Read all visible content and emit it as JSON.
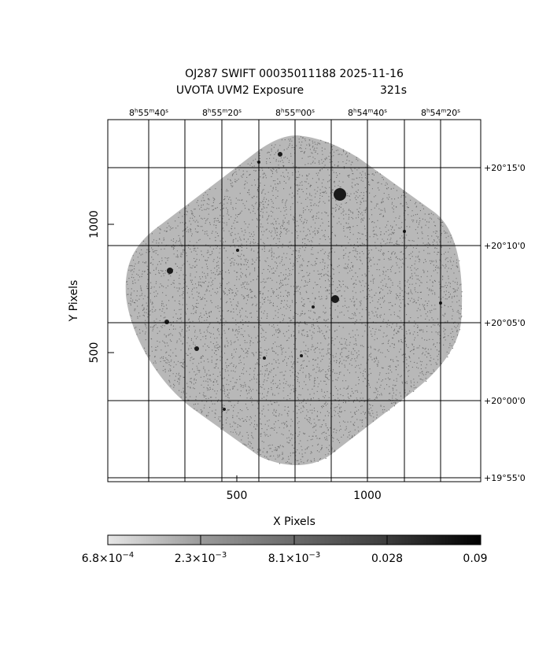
{
  "title": {
    "line1": "OJ287 SWIFT 00035011188 2025-11-16",
    "line2_left": "UVOTA UVM2 Exposure",
    "line2_right": "321s"
  },
  "axes": {
    "xlabel": "X Pixels",
    "ylabel": "Y Pixels",
    "x_ticks": [
      "500",
      "1000"
    ],
    "y_ticks": [
      "500",
      "1000"
    ],
    "ra_ticks": [
      {
        "h": "8",
        "m": "55",
        "s": "40"
      },
      {
        "h": "8",
        "m": "55",
        "s": "20"
      },
      {
        "h": "8",
        "m": "55",
        "s": "00"
      },
      {
        "h": "8",
        "m": "54",
        "s": "40"
      },
      {
        "h": "8",
        "m": "54",
        "s": "20"
      }
    ],
    "dec_ticks": [
      "+20°15'0",
      "+20°10'0",
      "+20°05'0",
      "+20°00'0",
      "+19°55'0"
    ]
  },
  "colorbar": {
    "labels": [
      {
        "mant": "6.8×10",
        "exp": "−4"
      },
      {
        "mant": "2.3×10",
        "exp": "−3"
      },
      {
        "mant": "8.1×10",
        "exp": "−3"
      },
      {
        "mant": "0.028",
        "exp": ""
      },
      {
        "mant": "0.09",
        "exp": ""
      }
    ],
    "colors": [
      "#e6e6e6",
      "#9a9a9a",
      "#6a6a6a",
      "#3c3c3c",
      "#000000"
    ]
  },
  "image": {
    "noise_color": "#6e6e6e",
    "sources": [
      {
        "x": 432,
        "y": 247,
        "r": 8
      },
      {
        "x": 426,
        "y": 380,
        "r": 5
      },
      {
        "x": 216,
        "y": 344,
        "r": 4
      },
      {
        "x": 250,
        "y": 443,
        "r": 3
      },
      {
        "x": 212,
        "y": 409,
        "r": 3
      },
      {
        "x": 356,
        "y": 196,
        "r": 3
      },
      {
        "x": 329,
        "y": 206,
        "r": 2
      },
      {
        "x": 514,
        "y": 294,
        "r": 2
      },
      {
        "x": 302,
        "y": 318,
        "r": 2
      },
      {
        "x": 383,
        "y": 452,
        "r": 2
      },
      {
        "x": 336,
        "y": 455,
        "r": 2
      },
      {
        "x": 398,
        "y": 390,
        "r": 2
      },
      {
        "x": 285,
        "y": 520,
        "r": 2
      },
      {
        "x": 560,
        "y": 385,
        "r": 2
      }
    ]
  }
}
